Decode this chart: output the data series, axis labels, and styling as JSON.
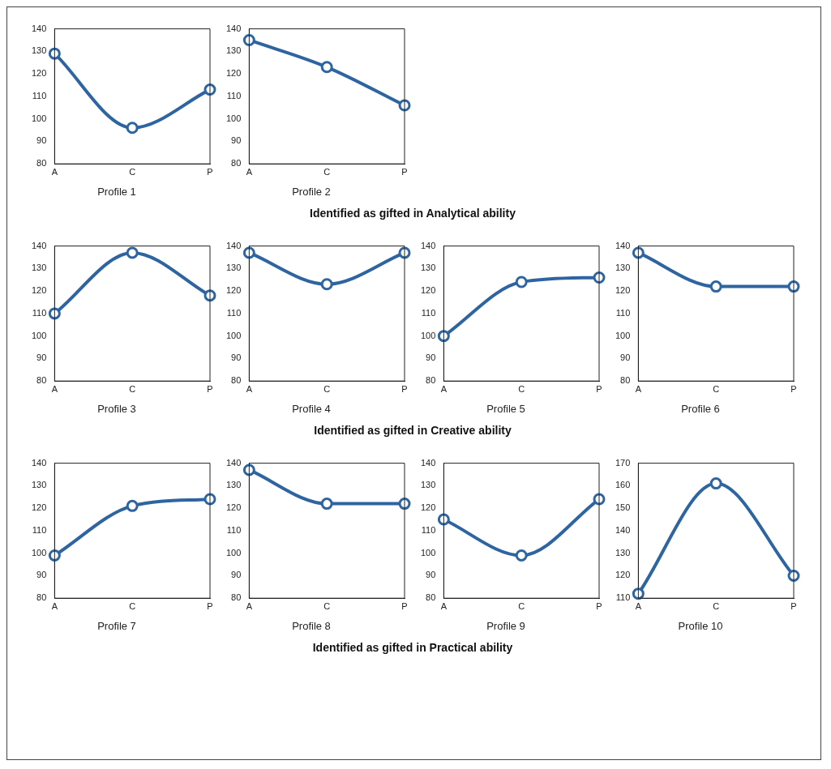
{
  "chart_data": [
    {
      "type": "line",
      "title": "Profile 1",
      "categories": [
        "A",
        "C",
        "P"
      ],
      "values": [
        129,
        96,
        113
      ],
      "color": "#2e64a0",
      "marker": "circle",
      "ylim": [
        80,
        140
      ],
      "yticks": [
        80,
        90,
        100,
        110,
        120,
        130,
        140
      ],
      "grid": false
    },
    {
      "type": "line",
      "title": "Profile 2",
      "categories": [
        "A",
        "C",
        "P"
      ],
      "values": [
        135,
        123,
        106
      ],
      "color": "#2e64a0",
      "marker": "circle",
      "ylim": [
        80,
        140
      ],
      "yticks": [
        80,
        90,
        100,
        110,
        120,
        130,
        140
      ],
      "grid": false,
      "annotations": [
        "Identified as gifted in Analytical ability"
      ]
    },
    {
      "type": "line",
      "title": "Profile 3",
      "categories": [
        "A",
        "C",
        "P"
      ],
      "values": [
        110,
        137,
        118
      ],
      "color": "#2e64a0",
      "marker": "circle",
      "ylim": [
        80,
        140
      ],
      "yticks": [
        80,
        90,
        100,
        110,
        120,
        130,
        140
      ],
      "grid": false
    },
    {
      "type": "line",
      "title": "Profile 4",
      "categories": [
        "A",
        "C",
        "P"
      ],
      "values": [
        137,
        123,
        137
      ],
      "color": "#2e64a0",
      "marker": "circle",
      "ylim": [
        80,
        140
      ],
      "yticks": [
        80,
        90,
        100,
        110,
        120,
        130,
        140
      ],
      "grid": false
    },
    {
      "type": "line",
      "title": "Profile 5",
      "categories": [
        "A",
        "C",
        "P"
      ],
      "values": [
        100,
        124,
        126
      ],
      "color": "#2e64a0",
      "marker": "circle",
      "ylim": [
        80,
        140
      ],
      "yticks": [
        80,
        90,
        100,
        110,
        120,
        130,
        140
      ],
      "grid": false
    },
    {
      "type": "line",
      "title": "Profile 6",
      "categories": [
        "A",
        "C",
        "P"
      ],
      "values": [
        137,
        122,
        122
      ],
      "color": "#2e64a0",
      "marker": "circle",
      "ylim": [
        80,
        140
      ],
      "yticks": [
        80,
        90,
        100,
        110,
        120,
        130,
        140
      ],
      "grid": false,
      "annotations": [
        "Identified as gifted in Creative ability"
      ]
    },
    {
      "type": "line",
      "title": "Profile 7",
      "categories": [
        "A",
        "C",
        "P"
      ],
      "values": [
        99,
        121,
        124
      ],
      "color": "#2e64a0",
      "marker": "circle",
      "ylim": [
        80,
        140
      ],
      "yticks": [
        80,
        90,
        100,
        110,
        120,
        130,
        140
      ],
      "grid": false
    },
    {
      "type": "line",
      "title": "Profile 8",
      "categories": [
        "A",
        "C",
        "P"
      ],
      "values": [
        137,
        122,
        122
      ],
      "color": "#2e64a0",
      "marker": "circle",
      "ylim": [
        80,
        140
      ],
      "yticks": [
        80,
        90,
        100,
        110,
        120,
        130,
        140
      ],
      "grid": false
    },
    {
      "type": "line",
      "title": "Profile 9",
      "categories": [
        "A",
        "C",
        "P"
      ],
      "values": [
        115,
        99,
        124
      ],
      "color": "#2e64a0",
      "marker": "circle",
      "ylim": [
        80,
        140
      ],
      "yticks": [
        80,
        90,
        100,
        110,
        120,
        130,
        140
      ],
      "grid": false
    },
    {
      "type": "line",
      "title": "Profile 10",
      "categories": [
        "A",
        "C",
        "P"
      ],
      "values": [
        112,
        161,
        120
      ],
      "color": "#2e64a0",
      "marker": "circle",
      "ylim": [
        110,
        170
      ],
      "yticks": [
        110,
        120,
        130,
        140,
        150,
        160,
        170
      ],
      "grid": false,
      "annotations": [
        "Identified as gifted in Practical ability"
      ]
    }
  ]
}
